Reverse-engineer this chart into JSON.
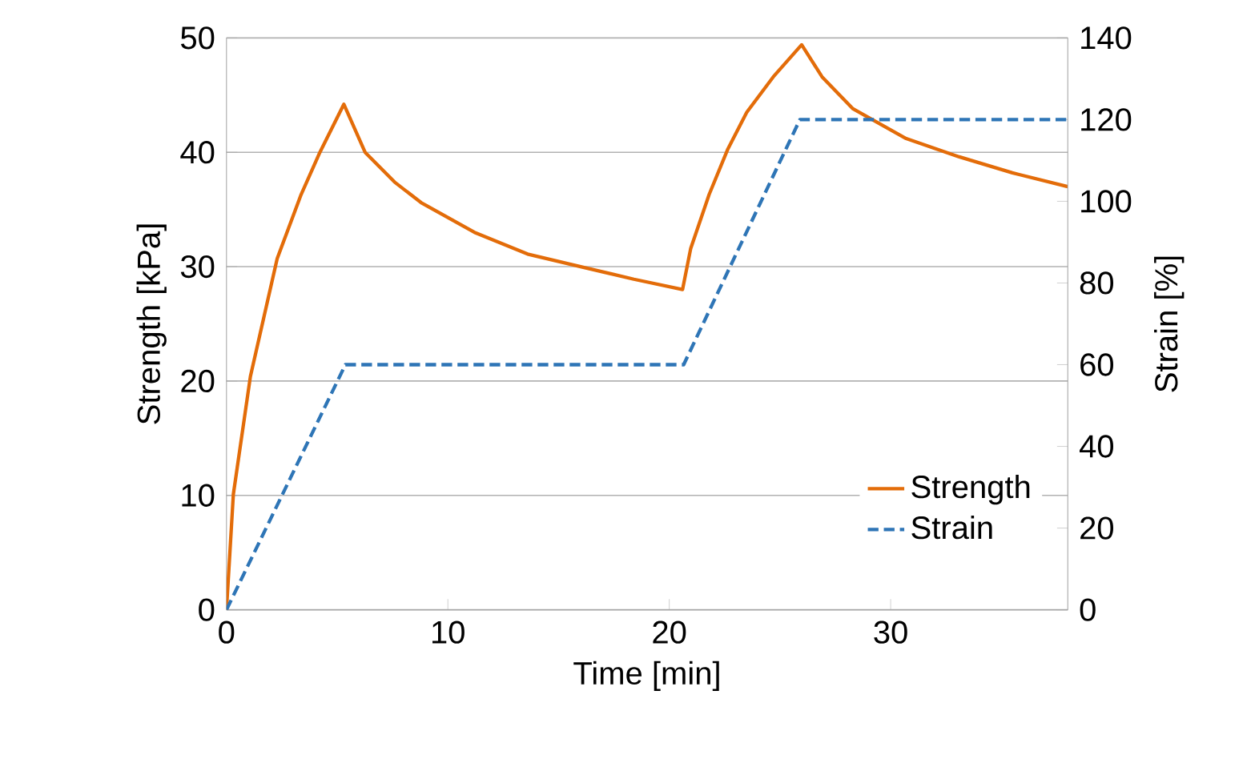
{
  "chart_data": {
    "type": "line",
    "xlabel": "Time [min]",
    "ylabel": "Strength [kPa]",
    "y2label": "Strain [%]",
    "xlim": [
      0,
      38
    ],
    "xticks": [
      0,
      10,
      20,
      30
    ],
    "ylim": [
      0,
      50
    ],
    "yticks": [
      0,
      10,
      20,
      30,
      40,
      50
    ],
    "y2lim": [
      0,
      140
    ],
    "y2ticks": [
      0,
      20,
      40,
      60,
      80,
      100,
      120,
      140
    ],
    "grid": "y",
    "legend": "bottom right",
    "series": [
      {
        "name": "Strength",
        "color": "#e36c09",
        "line_style": "solid",
        "x": [
          0,
          0.31,
          1.08,
          2.29,
          3.37,
          4.22,
          5.3,
          6.26,
          7.59,
          8.79,
          11.2,
          13.6,
          16.0,
          18.4,
          20.6,
          20.97,
          21.8,
          22.65,
          23.5,
          24.7,
          25.98,
          26.9,
          28.3,
          30.7,
          33.1,
          35.5,
          38
        ],
        "values": [
          0,
          10.1,
          20.4,
          30.7,
          36.3,
          40.0,
          44.2,
          40.0,
          37.4,
          35.6,
          33.0,
          31.1,
          30.0,
          28.9,
          28.0,
          31.6,
          36.3,
          40.3,
          43.5,
          46.6,
          49.4,
          46.6,
          43.8,
          41.2,
          39.6,
          38.2,
          37.0
        ]
      },
      {
        "name": "Strain",
        "color": "#2e75b6",
        "line_style": "dashed",
        "axis": "y2",
        "x": [
          0,
          5.37,
          20.65,
          25.9,
          38
        ],
        "values": [
          0,
          60,
          60,
          120,
          120
        ]
      }
    ]
  }
}
